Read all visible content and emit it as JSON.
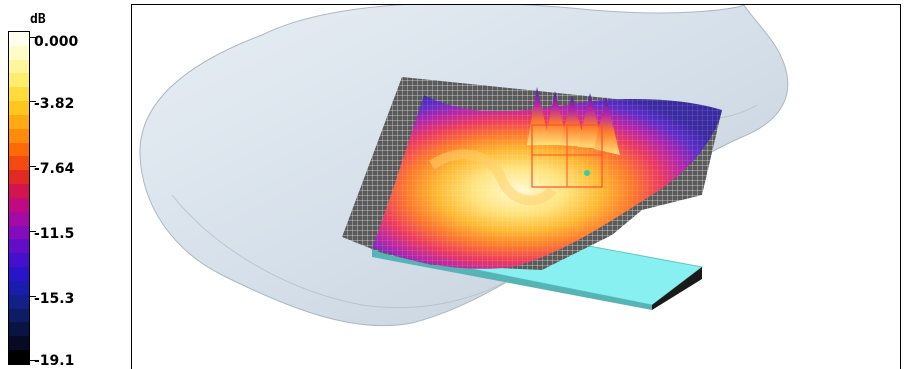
{
  "legend": {
    "unit": "dB",
    "ticks": [
      "0.000",
      "-3.82",
      "-7.64",
      "-11.5",
      "-15.3",
      "-19.1"
    ],
    "colors": [
      "#fffff0",
      "#fffcc8",
      "#fff59a",
      "#ffee6e",
      "#ffdc3c",
      "#ffc61e",
      "#ffaa12",
      "#ff8a0c",
      "#ff6a08",
      "#f24a10",
      "#e22a22",
      "#d21450",
      "#c00a84",
      "#a40aa6",
      "#840cbc",
      "#620ec8",
      "#4410cc",
      "#2a14c8",
      "#1a1cb0",
      "#12208a",
      "#0e1c66",
      "#0a1444",
      "#060a22",
      "#000000"
    ]
  },
  "viewport": {
    "head_color": "#dbe4ec",
    "phantom_color": "#88f0f0",
    "phantom_edge": "#1a1a1a"
  }
}
